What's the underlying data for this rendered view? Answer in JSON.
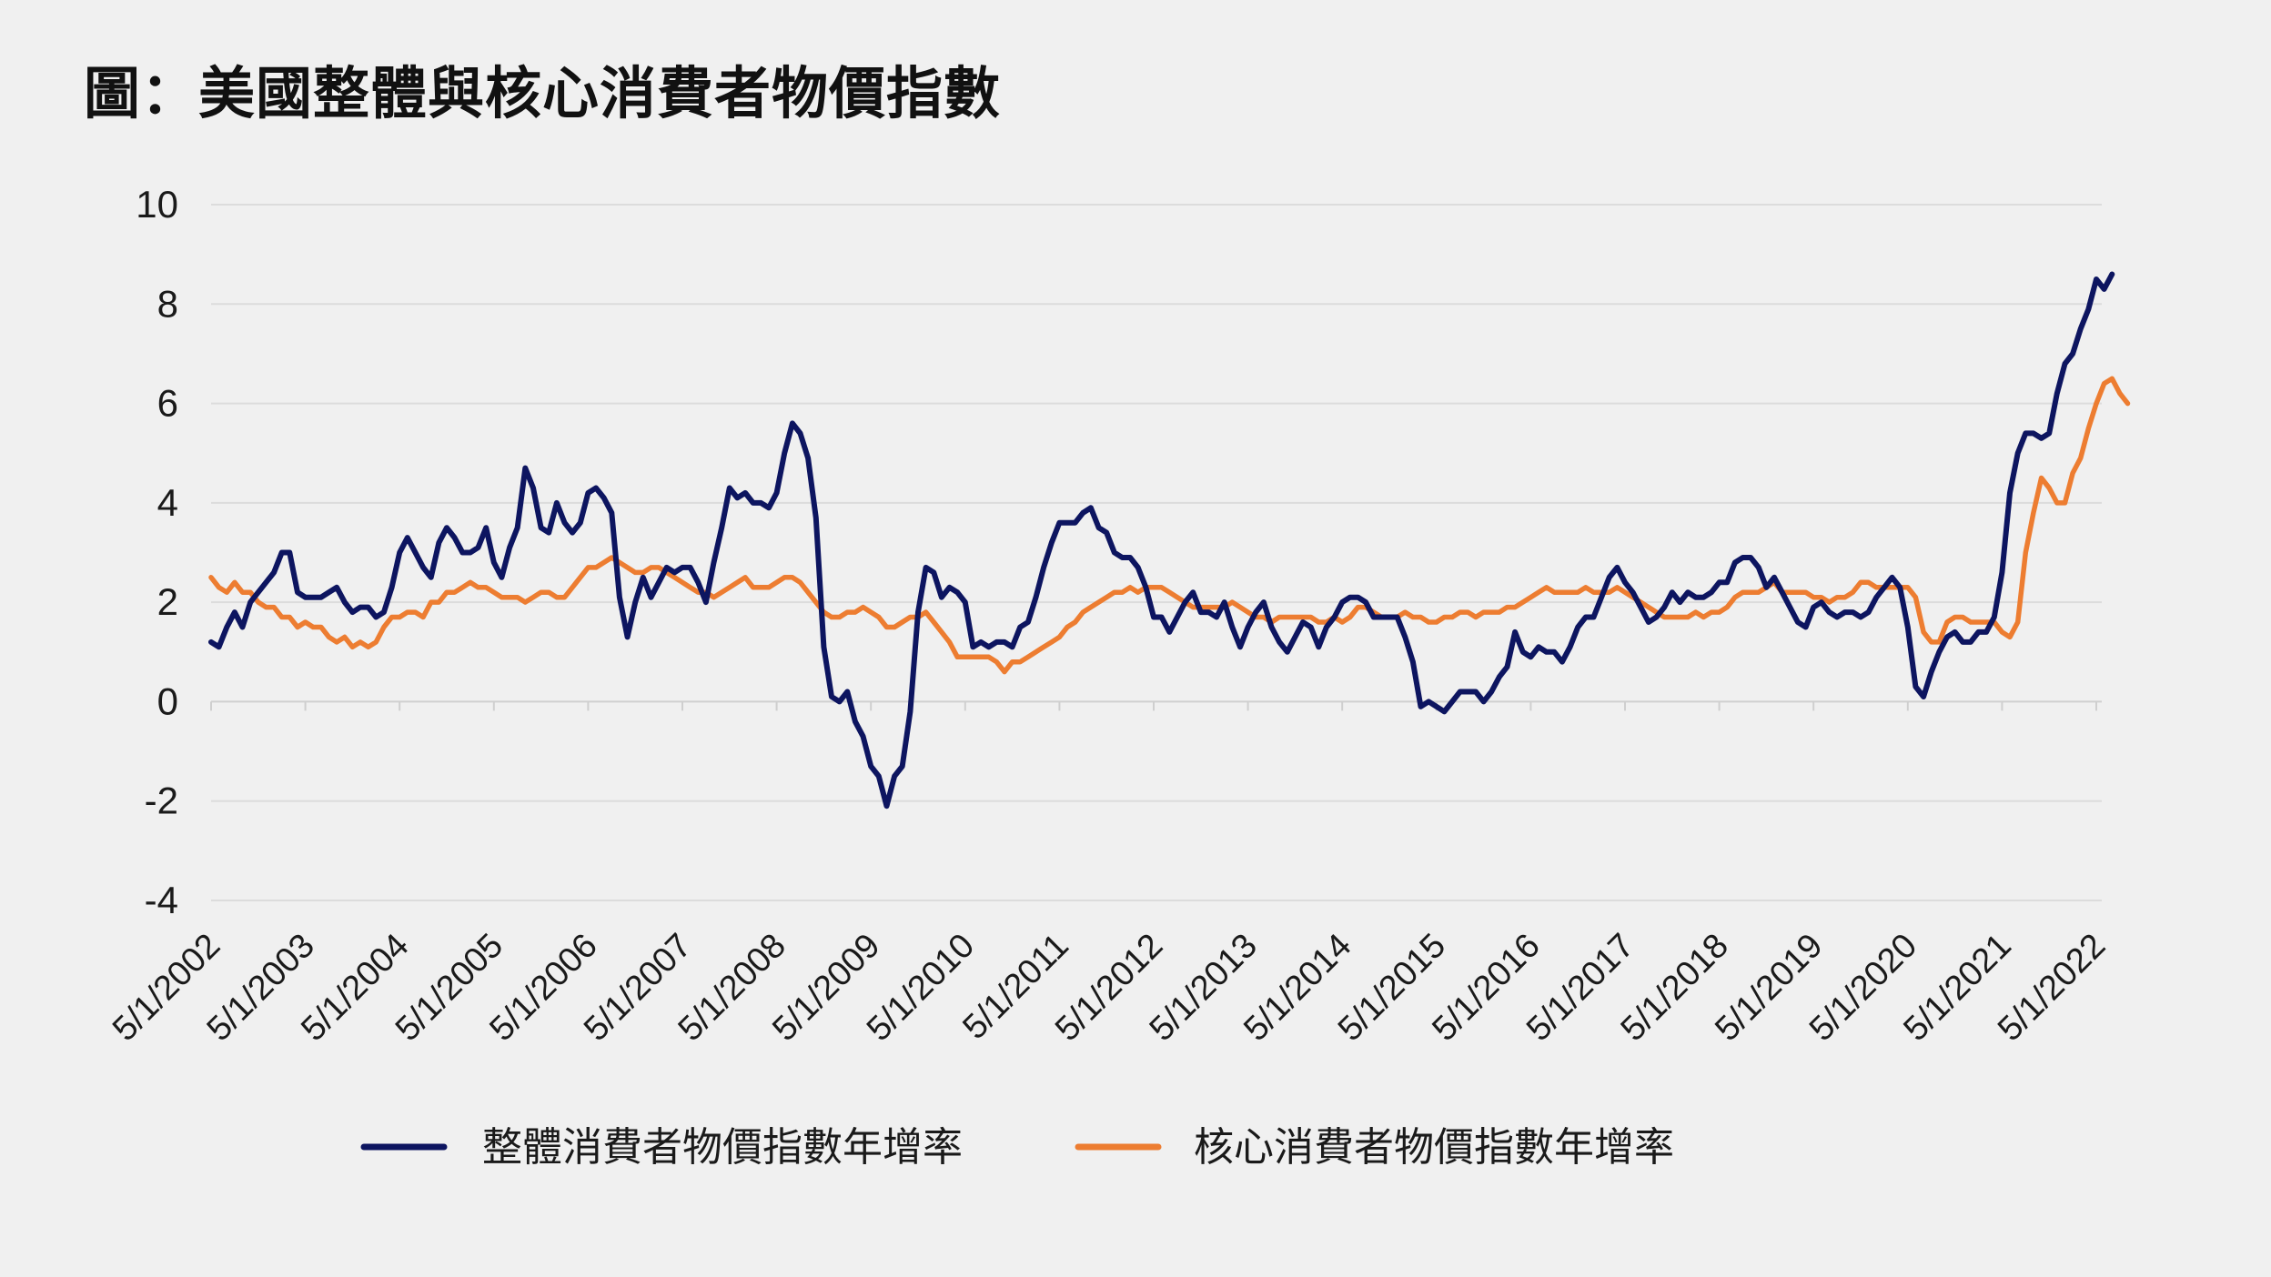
{
  "title": "圖：美國整體與核心消費者物價指數",
  "chart_data": {
    "type": "line",
    "title": "圖：美國整體與核心消費者物價指數",
    "xlabel": "",
    "ylabel": "",
    "ylim": [
      -4,
      10
    ],
    "yticks": [
      -4,
      -2,
      0,
      2,
      4,
      6,
      8,
      10
    ],
    "grid": true,
    "legend_position": "bottom",
    "x_start": "2002-05",
    "x_frequency": "monthly",
    "x_tick_labels": [
      "5/1/2002",
      "5/1/2003",
      "5/1/2004",
      "5/1/2005",
      "5/1/2006",
      "5/1/2007",
      "5/1/2008",
      "5/1/2009",
      "5/1/2010",
      "5/1/2011",
      "5/1/2012",
      "5/1/2013",
      "5/1/2014",
      "5/1/2015",
      "5/1/2016",
      "5/1/2017",
      "5/1/2018",
      "5/1/2019",
      "5/1/2020",
      "5/1/2021",
      "5/1/2022"
    ],
    "series": [
      {
        "name": "整體消費者物價指數年增率",
        "color": "#0d1560",
        "values": [
          1.2,
          1.1,
          1.5,
          1.8,
          1.5,
          2.0,
          2.2,
          2.4,
          2.6,
          3.0,
          3.0,
          2.2,
          2.1,
          2.1,
          2.1,
          2.2,
          2.3,
          2.0,
          1.8,
          1.9,
          1.9,
          1.7,
          1.8,
          2.3,
          3.0,
          3.3,
          3.0,
          2.7,
          2.5,
          3.2,
          3.5,
          3.3,
          3.0,
          3.0,
          3.1,
          3.5,
          2.8,
          2.5,
          3.1,
          3.5,
          4.7,
          4.3,
          3.5,
          3.4,
          4.0,
          3.6,
          3.4,
          3.6,
          4.2,
          4.3,
          4.1,
          3.8,
          2.1,
          1.3,
          2.0,
          2.5,
          2.1,
          2.4,
          2.7,
          2.6,
          2.7,
          2.7,
          2.4,
          2.0,
          2.8,
          3.5,
          4.3,
          4.1,
          4.2,
          4.0,
          4.0,
          3.9,
          4.2,
          5.0,
          5.6,
          5.4,
          4.9,
          3.7,
          1.1,
          0.1,
          0.0,
          0.2,
          -0.4,
          -0.7,
          -1.3,
          -1.5,
          -2.1,
          -1.5,
          -1.3,
          -0.2,
          1.8,
          2.7,
          2.6,
          2.1,
          2.3,
          2.2,
          2.0,
          1.1,
          1.2,
          1.1,
          1.2,
          1.2,
          1.1,
          1.5,
          1.6,
          2.1,
          2.7,
          3.2,
          3.6,
          3.6,
          3.6,
          3.8,
          3.9,
          3.5,
          3.4,
          3.0,
          2.9,
          2.9,
          2.7,
          2.3,
          1.7,
          1.7,
          1.4,
          1.7,
          2.0,
          2.2,
          1.8,
          1.8,
          1.7,
          2.0,
          1.5,
          1.1,
          1.5,
          1.8,
          2.0,
          1.5,
          1.2,
          1.0,
          1.3,
          1.6,
          1.5,
          1.1,
          1.5,
          1.7,
          2.0,
          2.1,
          2.1,
          2.0,
          1.7,
          1.7,
          1.7,
          1.7,
          1.3,
          0.8,
          -0.1,
          0.0,
          -0.1,
          -0.2,
          0.0,
          0.2,
          0.2,
          0.2,
          0.0,
          0.2,
          0.5,
          0.7,
          1.4,
          1.0,
          0.9,
          1.1,
          1.0,
          1.0,
          0.8,
          1.1,
          1.5,
          1.7,
          1.7,
          2.1,
          2.5,
          2.7,
          2.4,
          2.2,
          1.9,
          1.6,
          1.7,
          1.9,
          2.2,
          2.0,
          2.2,
          2.1,
          2.1,
          2.2,
          2.4,
          2.4,
          2.8,
          2.9,
          2.9,
          2.7,
          2.3,
          2.5,
          2.2,
          1.9,
          1.6,
          1.5,
          1.9,
          2.0,
          1.8,
          1.7,
          1.8,
          1.8,
          1.7,
          1.8,
          2.1,
          2.3,
          2.5,
          2.3,
          1.5,
          0.3,
          0.1,
          0.6,
          1.0,
          1.3,
          1.4,
          1.2,
          1.2,
          1.4,
          1.4,
          1.7,
          2.6,
          4.2,
          5.0,
          5.4,
          5.4,
          5.3,
          5.4,
          6.2,
          6.8,
          7.0,
          7.5,
          7.9,
          8.5,
          8.3,
          8.6
        ]
      },
      {
        "name": "核心消費者物價指數年增率",
        "color": "#ed7d31",
        "values": [
          2.5,
          2.3,
          2.2,
          2.4,
          2.2,
          2.2,
          2.0,
          1.9,
          1.9,
          1.7,
          1.7,
          1.5,
          1.6,
          1.5,
          1.5,
          1.3,
          1.2,
          1.3,
          1.1,
          1.2,
          1.1,
          1.2,
          1.5,
          1.7,
          1.7,
          1.8,
          1.8,
          1.7,
          2.0,
          2.0,
          2.2,
          2.2,
          2.3,
          2.4,
          2.3,
          2.3,
          2.2,
          2.1,
          2.1,
          2.1,
          2.0,
          2.1,
          2.2,
          2.2,
          2.1,
          2.1,
          2.3,
          2.5,
          2.7,
          2.7,
          2.8,
          2.9,
          2.8,
          2.7,
          2.6,
          2.6,
          2.7,
          2.7,
          2.6,
          2.5,
          2.4,
          2.3,
          2.2,
          2.2,
          2.1,
          2.2,
          2.3,
          2.4,
          2.5,
          2.3,
          2.3,
          2.3,
          2.4,
          2.5,
          2.5,
          2.4,
          2.2,
          2.0,
          1.8,
          1.7,
          1.7,
          1.8,
          1.8,
          1.9,
          1.8,
          1.7,
          1.5,
          1.5,
          1.6,
          1.7,
          1.7,
          1.8,
          1.6,
          1.4,
          1.2,
          0.9,
          0.9,
          0.9,
          0.9,
          0.9,
          0.8,
          0.6,
          0.8,
          0.8,
          0.9,
          1.0,
          1.1,
          1.2,
          1.3,
          1.5,
          1.6,
          1.8,
          1.9,
          2.0,
          2.1,
          2.2,
          2.2,
          2.3,
          2.2,
          2.3,
          2.3,
          2.3,
          2.2,
          2.1,
          2.0,
          1.9,
          1.9,
          1.9,
          1.9,
          1.9,
          2.0,
          1.9,
          1.8,
          1.7,
          1.7,
          1.6,
          1.7,
          1.7,
          1.7,
          1.7,
          1.7,
          1.6,
          1.6,
          1.7,
          1.6,
          1.7,
          1.9,
          1.9,
          1.8,
          1.7,
          1.7,
          1.7,
          1.8,
          1.7,
          1.7,
          1.6,
          1.6,
          1.7,
          1.7,
          1.8,
          1.8,
          1.7,
          1.8,
          1.8,
          1.8,
          1.9,
          1.9,
          2.0,
          2.1,
          2.2,
          2.3,
          2.2,
          2.2,
          2.2,
          2.2,
          2.3,
          2.2,
          2.2,
          2.2,
          2.3,
          2.2,
          2.1,
          2.0,
          1.9,
          1.8,
          1.7,
          1.7,
          1.7,
          1.7,
          1.8,
          1.7,
          1.8,
          1.8,
          1.9,
          2.1,
          2.2,
          2.2,
          2.2,
          2.3,
          2.4,
          2.2,
          2.2,
          2.2,
          2.2,
          2.1,
          2.1,
          2.0,
          2.1,
          2.1,
          2.2,
          2.4,
          2.4,
          2.3,
          2.3,
          2.3,
          2.3,
          2.3,
          2.1,
          1.4,
          1.2,
          1.2,
          1.6,
          1.7,
          1.7,
          1.6,
          1.6,
          1.6,
          1.6,
          1.4,
          1.3,
          1.6,
          3.0,
          3.8,
          4.5,
          4.3,
          4.0,
          4.0,
          4.6,
          4.9,
          5.5,
          6.0,
          6.4,
          6.5,
          6.2,
          6.0
        ]
      }
    ]
  }
}
